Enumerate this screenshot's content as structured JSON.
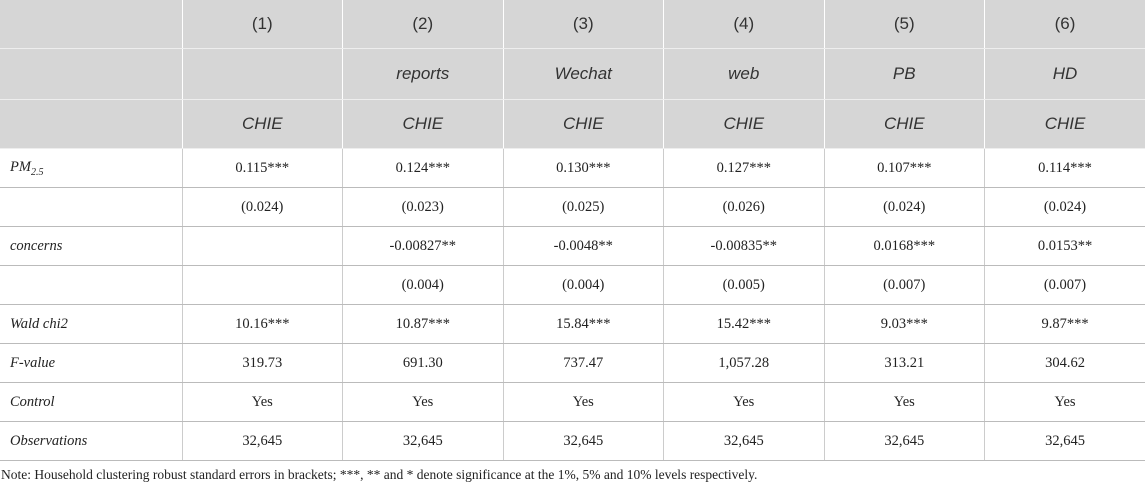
{
  "table": {
    "header": [
      [
        null,
        "(1)",
        "(2)",
        "(3)",
        "(4)",
        "(5)",
        "(6)"
      ],
      [
        null,
        null,
        "reports",
        "Wechat",
        "web",
        "PB",
        "HD"
      ],
      [
        null,
        "CHIE",
        "CHIE",
        "CHIE",
        "CHIE",
        "CHIE",
        "CHIE"
      ]
    ],
    "rows": [
      {
        "label": {
          "text": "PM",
          "sub": "2.5"
        },
        "cells": [
          "0.115***",
          "0.124***",
          "0.130***",
          "0.127***",
          "0.107***",
          "0.114***"
        ]
      },
      {
        "label": null,
        "cells": [
          "(0.024)",
          "(0.023)",
          "(0.025)",
          "(0.026)",
          "(0.024)",
          "(0.024)"
        ]
      },
      {
        "label": "concerns",
        "cells": [
          null,
          "-0.00827**",
          "-0.0048**",
          "-0.00835**",
          "0.0168***",
          "0.0153**"
        ]
      },
      {
        "label": null,
        "cells": [
          null,
          "(0.004)",
          "(0.004)",
          "(0.005)",
          "(0.007)",
          "(0.007)"
        ]
      },
      {
        "label": "Wald chi2",
        "cells": [
          "10.16***",
          "10.87***",
          "15.84***",
          "15.42***",
          "9.03***",
          "9.87***"
        ]
      },
      {
        "label": "F-value",
        "cells": [
          "319.73",
          "691.30",
          "737.47",
          "1,057.28",
          "313.21",
          "304.62"
        ]
      },
      {
        "label": "Control",
        "cells": [
          "Yes",
          "Yes",
          "Yes",
          "Yes",
          "Yes",
          "Yes"
        ]
      },
      {
        "label": "Observations",
        "cells": [
          "32,645",
          "32,645",
          "32,645",
          "32,645",
          "32,645",
          "32,645"
        ]
      }
    ],
    "note": "Note: Household clustering robust standard errors in brackets; ***, ** and * denote significance at the 1%, 5% and 10% levels respectively."
  }
}
